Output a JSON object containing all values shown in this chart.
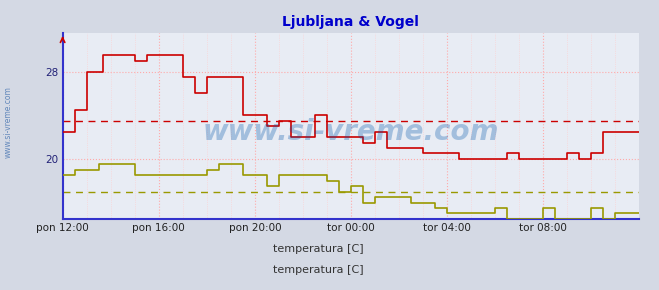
{
  "title": "Ljubljana & Vogel",
  "title_color": "#0000cc",
  "title_fontsize": 10,
  "bg_color": "#d4d9e4",
  "plot_bg_color": "#e8ecf4",
  "xlim": [
    0,
    288
  ],
  "ylim": [
    14.5,
    31.5
  ],
  "yticks": [
    20,
    28
  ],
  "xtick_labels": [
    "pon 12:00",
    "pon 16:00",
    "pon 20:00",
    "tor 00:00",
    "tor 04:00",
    "tor 08:00"
  ],
  "xtick_positions": [
    0,
    48,
    96,
    144,
    192,
    240
  ],
  "watermark": "www.si-vreme.com",
  "watermark_color": "#0055aa",
  "watermark_alpha": 0.3,
  "watermark_fontsize": 20,
  "left_label": "www.si-vreme.com",
  "legend1_label": "temperatura [C]",
  "legend2_label": "temperatura [C]",
  "legend1_color": "#cc0000",
  "legend2_color": "#999900",
  "avg1": 23.5,
  "avg2": 17.0,
  "series1_color": "#cc0000",
  "series2_color": "#999900",
  "hgrid_color": "#ffaaaa",
  "vgrid_color": "#ffcccc",
  "vgrid_major_color": "#ffaaaa",
  "spine_color": "#3333cc",
  "arrow_color": "#cc0000",
  "series1": [
    [
      0,
      22.5
    ],
    [
      6,
      24.5
    ],
    [
      12,
      28.0
    ],
    [
      20,
      29.5
    ],
    [
      36,
      29.0
    ],
    [
      42,
      29.5
    ],
    [
      54,
      29.5
    ],
    [
      60,
      27.5
    ],
    [
      66,
      26.0
    ],
    [
      72,
      27.5
    ],
    [
      84,
      27.5
    ],
    [
      90,
      24.0
    ],
    [
      96,
      24.0
    ],
    [
      102,
      23.0
    ],
    [
      108,
      23.5
    ],
    [
      114,
      22.0
    ],
    [
      126,
      24.0
    ],
    [
      132,
      22.0
    ],
    [
      144,
      22.0
    ],
    [
      150,
      21.5
    ],
    [
      156,
      22.5
    ],
    [
      162,
      21.0
    ],
    [
      174,
      21.0
    ],
    [
      180,
      20.5
    ],
    [
      192,
      20.5
    ],
    [
      198,
      20.0
    ],
    [
      216,
      20.0
    ],
    [
      222,
      20.5
    ],
    [
      228,
      20.0
    ],
    [
      246,
      20.0
    ],
    [
      252,
      20.5
    ],
    [
      258,
      20.0
    ],
    [
      264,
      20.5
    ],
    [
      270,
      22.5
    ],
    [
      288,
      22.5
    ]
  ],
  "series2": [
    [
      0,
      18.5
    ],
    [
      6,
      19.0
    ],
    [
      18,
      19.5
    ],
    [
      30,
      19.5
    ],
    [
      36,
      18.5
    ],
    [
      66,
      18.5
    ],
    [
      72,
      19.0
    ],
    [
      78,
      19.5
    ],
    [
      84,
      19.5
    ],
    [
      90,
      18.5
    ],
    [
      96,
      18.5
    ],
    [
      102,
      17.5
    ],
    [
      108,
      18.5
    ],
    [
      126,
      18.5
    ],
    [
      132,
      18.0
    ],
    [
      138,
      17.0
    ],
    [
      144,
      17.5
    ],
    [
      150,
      16.0
    ],
    [
      156,
      16.5
    ],
    [
      168,
      16.5
    ],
    [
      174,
      16.0
    ],
    [
      186,
      15.5
    ],
    [
      192,
      15.0
    ],
    [
      210,
      15.0
    ],
    [
      216,
      15.5
    ],
    [
      222,
      14.5
    ],
    [
      234,
      14.5
    ],
    [
      240,
      15.5
    ],
    [
      246,
      14.5
    ],
    [
      258,
      14.5
    ],
    [
      264,
      15.5
    ],
    [
      270,
      14.5
    ],
    [
      276,
      15.0
    ],
    [
      288,
      15.0
    ]
  ]
}
